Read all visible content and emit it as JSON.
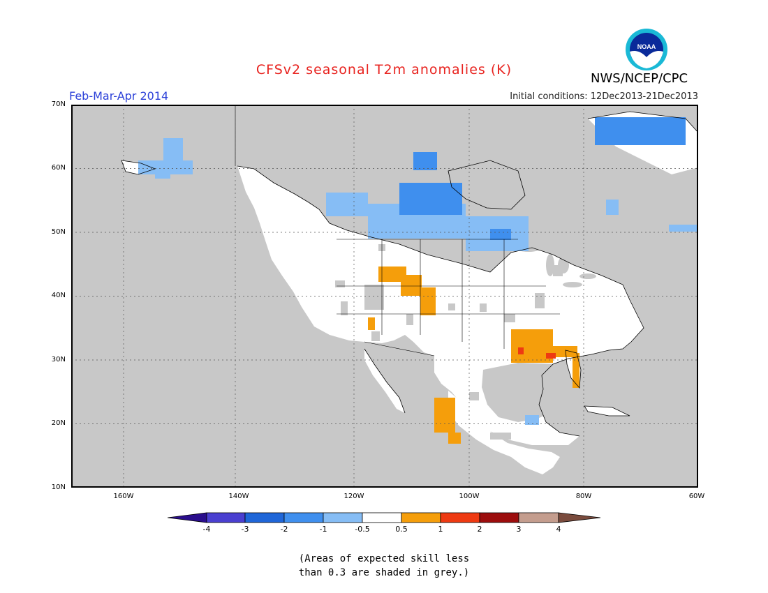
{
  "header": {
    "title": "CFSv2 seasonal T2m anomalies (K)",
    "period": "Feb-Mar-Apr 2014",
    "initial_conditions": "Initial conditions: 12Dec2013-21Dec2013",
    "agency": "NWS/NCEP/CPC",
    "logo_text": "NOAA"
  },
  "map": {
    "lat_labels": [
      "70N",
      "60N",
      "50N",
      "40N",
      "30N",
      "20N",
      "10N"
    ],
    "lon_labels": [
      "160W",
      "140W",
      "120W",
      "100W",
      "80W",
      "60W"
    ],
    "extent": {
      "lon": [
        -172,
        -60
      ],
      "lat": [
        10,
        70
      ]
    },
    "ocean_color": "#c8c8c8",
    "land_color": "#ffffff",
    "skill_grey_color": "#c8c8c8"
  },
  "colorbar": {
    "labels": [
      "-4",
      "-3",
      "-2",
      "-1",
      "-0.5",
      "0.5",
      "1",
      "2",
      "3",
      "4"
    ],
    "colors": [
      "#2a0e8c",
      "#4a3fd0",
      "#1f66d8",
      "#3f8fee",
      "#86bdf5",
      "#ffffff",
      "#f59e0b",
      "#ee3a12",
      "#9c0d0d",
      "#c49d8e",
      "#7a4b3d"
    ]
  },
  "footnote": {
    "line1": "(Areas of expected skill less",
    "line2": "than 0.3 are shaded in grey.)"
  }
}
